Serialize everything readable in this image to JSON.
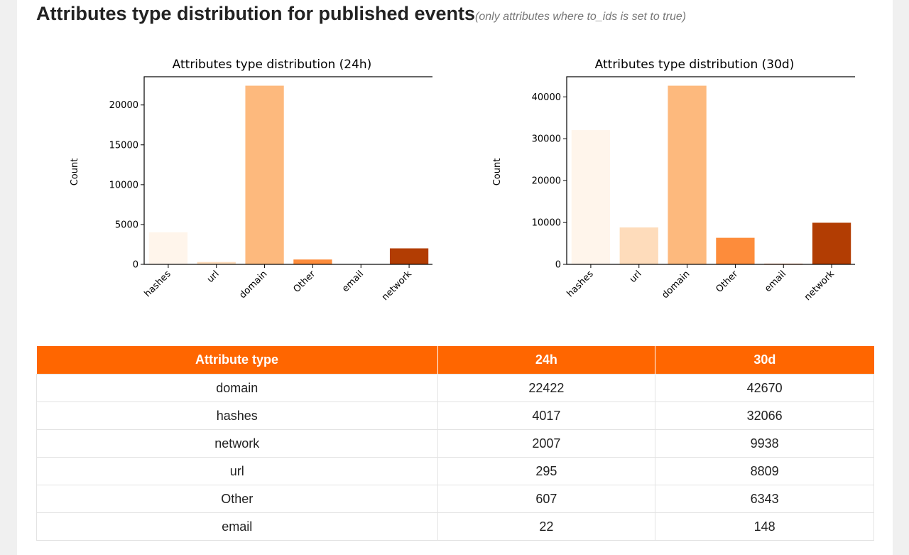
{
  "heading": {
    "title": "Attributes type distribution for published events",
    "subtitle": "(only attributes where to_ids is set to true)"
  },
  "colors": {
    "accent": "#ff6600",
    "bar_palette": [
      "#fff5eb",
      "#fedcbb",
      "#fdb97d",
      "#fd8c3b",
      "#f4680f",
      "#b23d03"
    ]
  },
  "chart_data": [
    {
      "type": "bar",
      "title": "Attributes type distribution (24h)",
      "xlabel": "",
      "ylabel": "Count",
      "categories": [
        "hashes",
        "url",
        "domain",
        "Other",
        "email",
        "network"
      ],
      "values": [
        4017,
        295,
        22422,
        607,
        22,
        2007
      ],
      "colors": [
        "#fff5eb",
        "#fedcbb",
        "#fdb97d",
        "#fd8c3b",
        "#f4680f",
        "#b23d03"
      ],
      "ylim": [
        0,
        23543
      ],
      "yticks": [
        0,
        5000,
        10000,
        15000,
        20000
      ],
      "grid": false,
      "legend": "none"
    },
    {
      "type": "bar",
      "title": "Attributes type distribution (30d)",
      "xlabel": "",
      "ylabel": "Count",
      "categories": [
        "hashes",
        "url",
        "domain",
        "Other",
        "email",
        "network"
      ],
      "values": [
        32066,
        8809,
        42670,
        6343,
        148,
        9938
      ],
      "colors": [
        "#fff5eb",
        "#fedcbb",
        "#fdb97d",
        "#fd8c3b",
        "#f4680f",
        "#b23d03"
      ],
      "ylim": [
        0,
        44804
      ],
      "yticks": [
        0,
        10000,
        20000,
        30000,
        40000
      ],
      "grid": false,
      "legend": "none"
    }
  ],
  "table": {
    "headers": [
      "Attribute type",
      "24h",
      "30d"
    ],
    "rows": [
      [
        "domain",
        "22422",
        "42670"
      ],
      [
        "hashes",
        "4017",
        "32066"
      ],
      [
        "network",
        "2007",
        "9938"
      ],
      [
        "url",
        "295",
        "8809"
      ],
      [
        "Other",
        "607",
        "6343"
      ],
      [
        "email",
        "22",
        "148"
      ]
    ]
  }
}
